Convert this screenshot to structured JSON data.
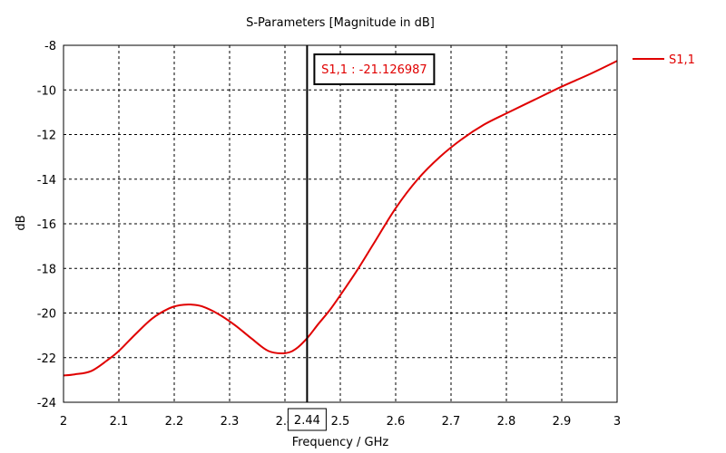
{
  "chart_data": {
    "type": "line",
    "title": "S-Parameters [Magnitude in dB]",
    "xlabel": "Frequency / GHz",
    "ylabel": "dB",
    "xlim": [
      2,
      3
    ],
    "ylim": [
      -24,
      -8
    ],
    "x_ticks": [
      "2",
      "2.1",
      "2.2",
      "2.3",
      "2.4",
      "2.5",
      "2.6",
      "2.7",
      "2.8",
      "2.9",
      "3"
    ],
    "y_ticks": [
      "-8",
      "-10",
      "-12",
      "-14",
      "-16",
      "-18",
      "-20",
      "-22",
      "-24"
    ],
    "grid": true,
    "legend_position": "right",
    "series": [
      {
        "name": "S1,1",
        "color": "#e00000",
        "x": [
          2.0,
          2.02,
          2.05,
          2.08,
          2.1,
          2.13,
          2.16,
          2.19,
          2.21,
          2.23,
          2.25,
          2.28,
          2.31,
          2.34,
          2.37,
          2.4,
          2.42,
          2.44,
          2.46,
          2.48,
          2.5,
          2.53,
          2.56,
          2.6,
          2.64,
          2.68,
          2.72,
          2.76,
          2.8,
          2.85,
          2.9,
          2.95,
          3.0
        ],
        "y": [
          -22.8,
          -22.75,
          -22.6,
          -22.1,
          -21.7,
          -20.95,
          -20.25,
          -19.8,
          -19.65,
          -19.62,
          -19.7,
          -20.05,
          -20.55,
          -21.15,
          -21.7,
          -21.8,
          -21.6,
          -21.13,
          -20.5,
          -19.9,
          -19.2,
          -18.1,
          -16.9,
          -15.3,
          -14.0,
          -13.0,
          -12.2,
          -11.55,
          -11.05,
          -10.45,
          -9.85,
          -9.3,
          -8.7
        ]
      }
    ],
    "cursor": {
      "x": 2.44,
      "label": "2.44",
      "marker_text": "S1,1 : -21.126987"
    }
  }
}
